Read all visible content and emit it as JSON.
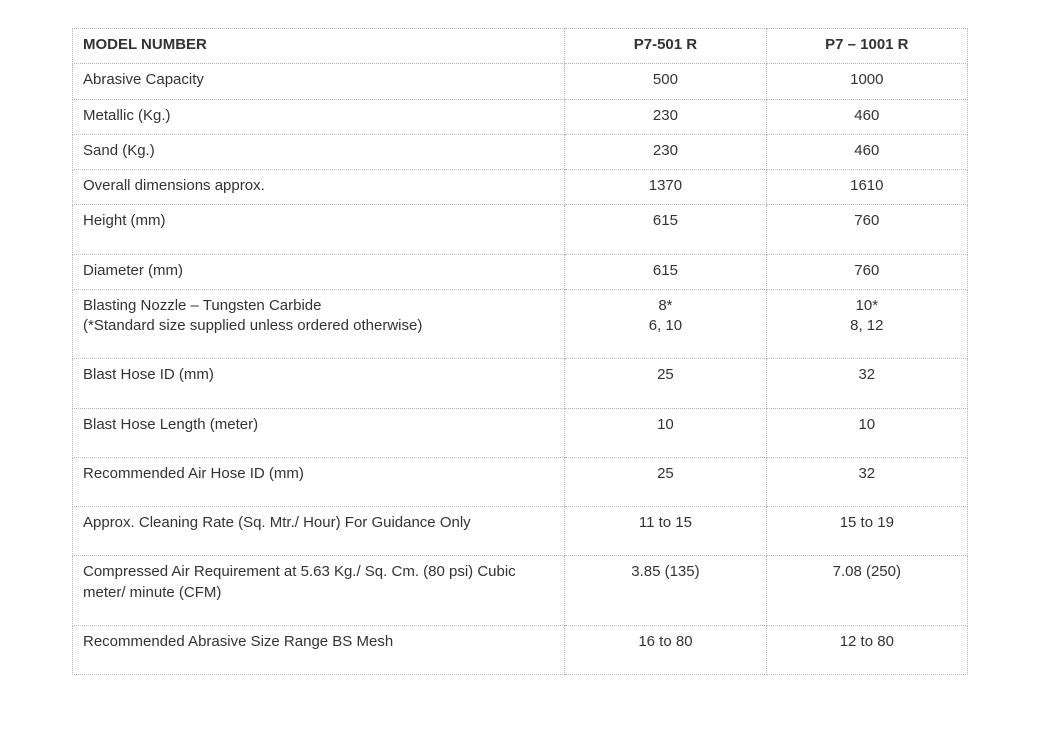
{
  "table": {
    "header": {
      "label": "MODEL NUMBER",
      "col1": "P7-501 R",
      "col2": "P7 – 1001 R"
    },
    "rows": [
      {
        "label": "Abrasive Capacity",
        "c1": "500",
        "c2": "1000",
        "tall": false
      },
      {
        "label": "Metallic (Kg.)",
        "c1": "230",
        "c2": "460",
        "tall": false
      },
      {
        "label": "Sand (Kg.)",
        "c1": "230",
        "c2": "460",
        "tall": false
      },
      {
        "label": "Overall dimensions approx.",
        "c1": "1370",
        "c2": "1610",
        "tall": false
      },
      {
        "label": "Height (mm)",
        "c1": "615",
        "c2": "760",
        "tall": true
      },
      {
        "label": "Diameter (mm)",
        "c1": "615",
        "c2": "760",
        "tall": false
      },
      {
        "label": "Blasting Nozzle – Tungsten Carbide\n(*Standard size supplied unless ordered otherwise)",
        "c1": "8*\n6, 10",
        "c2": "10*\n8, 12",
        "tall": true
      },
      {
        "label": "Blast Hose ID (mm)",
        "c1": "25",
        "c2": "32",
        "tall": true
      },
      {
        "label": "Blast Hose Length (meter)",
        "c1": "10",
        "c2": "10",
        "tall": true
      },
      {
        "label": "Recommended Air Hose ID (mm)",
        "c1": "25",
        "c2": "32",
        "tall": true
      },
      {
        "label": "Approx. Cleaning Rate (Sq. Mtr./ Hour) For Guidance Only",
        "c1": "11 to 15",
        "c2": "15 to 19",
        "tall": true
      },
      {
        "label": "Compressed Air Requirement at 5.63 Kg./ Sq. Cm. (80 psi) Cubic meter/ minute (CFM)",
        "c1": "3.85 (135)",
        "c2": "7.08 (250)",
        "tall": true
      },
      {
        "label": "Recommended Abrasive Size Range BS Mesh",
        "c1": "16 to 80",
        "c2": "12 to 80",
        "tall": true
      }
    ]
  },
  "colors": {
    "text": "#333333",
    "border": "#b8b8b8",
    "background": "#ffffff"
  },
  "typography": {
    "font_family": "Verdana, Geneva, sans-serif",
    "font_size_pt": 11,
    "header_weight": "bold"
  },
  "layout": {
    "table_width_pct": 100,
    "col_label_pct": 55,
    "col_value_pct": 22.5,
    "border_style": "dotted"
  }
}
